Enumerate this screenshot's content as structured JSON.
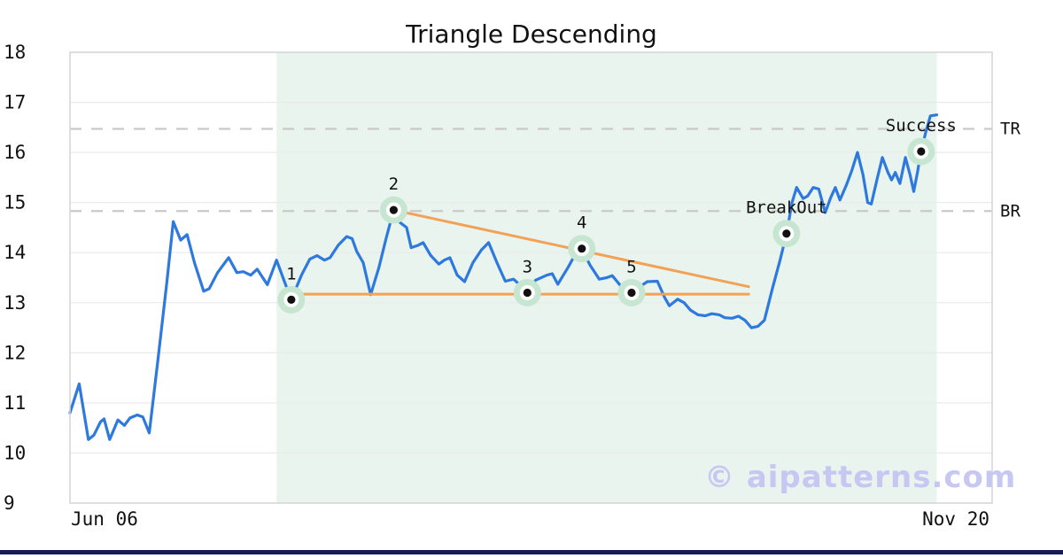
{
  "page": {
    "title": "Triangle Descending",
    "watermark": "© aipatterns.com"
  },
  "chart_data": {
    "type": "line",
    "title": "Triangle Descending",
    "xlabel": "",
    "ylabel": "",
    "x_axis": {
      "tick_labels": [
        "Jun 06",
        "Nov 20"
      ]
    },
    "y_axis": {
      "min": 9,
      "max": 18,
      "ticks": [
        9,
        10,
        11,
        12,
        13,
        14,
        15,
        16,
        17,
        18
      ]
    },
    "grid": "horizontal",
    "levels": [
      {
        "label": "TR",
        "value": 16.47
      },
      {
        "label": "BR",
        "value": 14.83
      }
    ],
    "pattern_zone": {
      "x_start": 0.224,
      "x_end": 0.94
    },
    "trendlines": [
      {
        "name": "support",
        "from": [
          0.24,
          13.17
        ],
        "to": [
          0.736,
          13.17
        ]
      },
      {
        "name": "resistance",
        "from": [
          0.351,
          14.85
        ],
        "to": [
          0.736,
          13.32
        ]
      }
    ],
    "markers": [
      {
        "label": "1",
        "x": 0.24,
        "value": 13.06
      },
      {
        "label": "2",
        "x": 0.351,
        "value": 14.85
      },
      {
        "label": "3",
        "x": 0.496,
        "value": 13.2
      },
      {
        "label": "4",
        "x": 0.555,
        "value": 14.08
      },
      {
        "label": "5",
        "x": 0.609,
        "value": 13.2
      },
      {
        "label": "BreakOut",
        "x": 0.777,
        "value": 14.38
      },
      {
        "label": "Success",
        "x": 0.923,
        "value": 16.02
      }
    ],
    "series": [
      {
        "name": "price",
        "points": [
          [
            0.0,
            10.8
          ],
          [
            0.01,
            11.38
          ],
          [
            0.02,
            10.27
          ],
          [
            0.026,
            10.36
          ],
          [
            0.033,
            10.62
          ],
          [
            0.037,
            10.68
          ],
          [
            0.043,
            10.27
          ],
          [
            0.052,
            10.66
          ],
          [
            0.059,
            10.55
          ],
          [
            0.065,
            10.7
          ],
          [
            0.073,
            10.76
          ],
          [
            0.079,
            10.72
          ],
          [
            0.086,
            10.4
          ],
          [
            0.095,
            11.8
          ],
          [
            0.105,
            13.4
          ],
          [
            0.112,
            14.62
          ],
          [
            0.12,
            14.25
          ],
          [
            0.127,
            14.36
          ],
          [
            0.135,
            13.8
          ],
          [
            0.145,
            13.23
          ],
          [
            0.151,
            13.28
          ],
          [
            0.16,
            13.6
          ],
          [
            0.172,
            13.9
          ],
          [
            0.181,
            13.6
          ],
          [
            0.188,
            13.62
          ],
          [
            0.196,
            13.55
          ],
          [
            0.203,
            13.67
          ],
          [
            0.214,
            13.36
          ],
          [
            0.224,
            13.85
          ],
          [
            0.232,
            13.45
          ],
          [
            0.24,
            13.06
          ],
          [
            0.251,
            13.55
          ],
          [
            0.26,
            13.87
          ],
          [
            0.268,
            13.94
          ],
          [
            0.276,
            13.85
          ],
          [
            0.282,
            13.9
          ],
          [
            0.291,
            14.15
          ],
          [
            0.3,
            14.32
          ],
          [
            0.306,
            14.28
          ],
          [
            0.311,
            14.02
          ],
          [
            0.318,
            13.8
          ],
          [
            0.326,
            13.16
          ],
          [
            0.335,
            13.7
          ],
          [
            0.343,
            14.3
          ],
          [
            0.351,
            14.85
          ],
          [
            0.358,
            14.6
          ],
          [
            0.365,
            14.5
          ],
          [
            0.37,
            14.1
          ],
          [
            0.378,
            14.15
          ],
          [
            0.383,
            14.2
          ],
          [
            0.391,
            13.95
          ],
          [
            0.4,
            13.77
          ],
          [
            0.406,
            13.85
          ],
          [
            0.412,
            13.9
          ],
          [
            0.42,
            13.55
          ],
          [
            0.428,
            13.42
          ],
          [
            0.437,
            13.8
          ],
          [
            0.446,
            14.05
          ],
          [
            0.454,
            14.2
          ],
          [
            0.463,
            13.8
          ],
          [
            0.472,
            13.43
          ],
          [
            0.481,
            13.47
          ],
          [
            0.49,
            13.32
          ],
          [
            0.496,
            13.2
          ],
          [
            0.505,
            13.45
          ],
          [
            0.517,
            13.55
          ],
          [
            0.523,
            13.58
          ],
          [
            0.529,
            13.37
          ],
          [
            0.54,
            13.7
          ],
          [
            0.549,
            14.0
          ],
          [
            0.555,
            14.08
          ],
          [
            0.564,
            13.75
          ],
          [
            0.574,
            13.47
          ],
          [
            0.582,
            13.5
          ],
          [
            0.588,
            13.54
          ],
          [
            0.598,
            13.32
          ],
          [
            0.609,
            13.2
          ],
          [
            0.618,
            13.32
          ],
          [
            0.626,
            13.42
          ],
          [
            0.637,
            13.43
          ],
          [
            0.645,
            13.1
          ],
          [
            0.65,
            12.94
          ],
          [
            0.659,
            13.07
          ],
          [
            0.666,
            13.0
          ],
          [
            0.673,
            12.85
          ],
          [
            0.681,
            12.76
          ],
          [
            0.689,
            12.74
          ],
          [
            0.696,
            12.78
          ],
          [
            0.704,
            12.76
          ],
          [
            0.71,
            12.7
          ],
          [
            0.718,
            12.69
          ],
          [
            0.725,
            12.73
          ],
          [
            0.732,
            12.65
          ],
          [
            0.739,
            12.5
          ],
          [
            0.746,
            12.53
          ],
          [
            0.753,
            12.65
          ],
          [
            0.762,
            13.3
          ],
          [
            0.77,
            13.85
          ],
          [
            0.777,
            14.38
          ],
          [
            0.783,
            15.0
          ],
          [
            0.788,
            15.3
          ],
          [
            0.795,
            15.08
          ],
          [
            0.8,
            15.13
          ],
          [
            0.806,
            15.3
          ],
          [
            0.812,
            15.27
          ],
          [
            0.819,
            14.8
          ],
          [
            0.825,
            15.1
          ],
          [
            0.83,
            15.3
          ],
          [
            0.835,
            15.05
          ],
          [
            0.842,
            15.35
          ],
          [
            0.848,
            15.65
          ],
          [
            0.854,
            16.0
          ],
          [
            0.86,
            15.55
          ],
          [
            0.865,
            15.0
          ],
          [
            0.869,
            14.97
          ],
          [
            0.875,
            15.45
          ],
          [
            0.881,
            15.9
          ],
          [
            0.887,
            15.6
          ],
          [
            0.891,
            15.45
          ],
          [
            0.895,
            15.6
          ],
          [
            0.9,
            15.38
          ],
          [
            0.906,
            15.9
          ],
          [
            0.911,
            15.55
          ],
          [
            0.915,
            15.22
          ],
          [
            0.919,
            15.6
          ],
          [
            0.923,
            16.02
          ],
          [
            0.928,
            16.4
          ],
          [
            0.933,
            16.73
          ],
          [
            0.94,
            16.75
          ]
        ]
      }
    ],
    "colors": {
      "line": "#2e79dd",
      "trendline": "#f2a155",
      "zone": "#e9f4ef",
      "halo": "#c7e6d2",
      "grid": "#ebebeb",
      "spine": "#d4d4d4",
      "level_dash": "#c9c9c9",
      "text": "#111111",
      "watermark": "#c7c8f2",
      "footer": "#141b55"
    }
  }
}
